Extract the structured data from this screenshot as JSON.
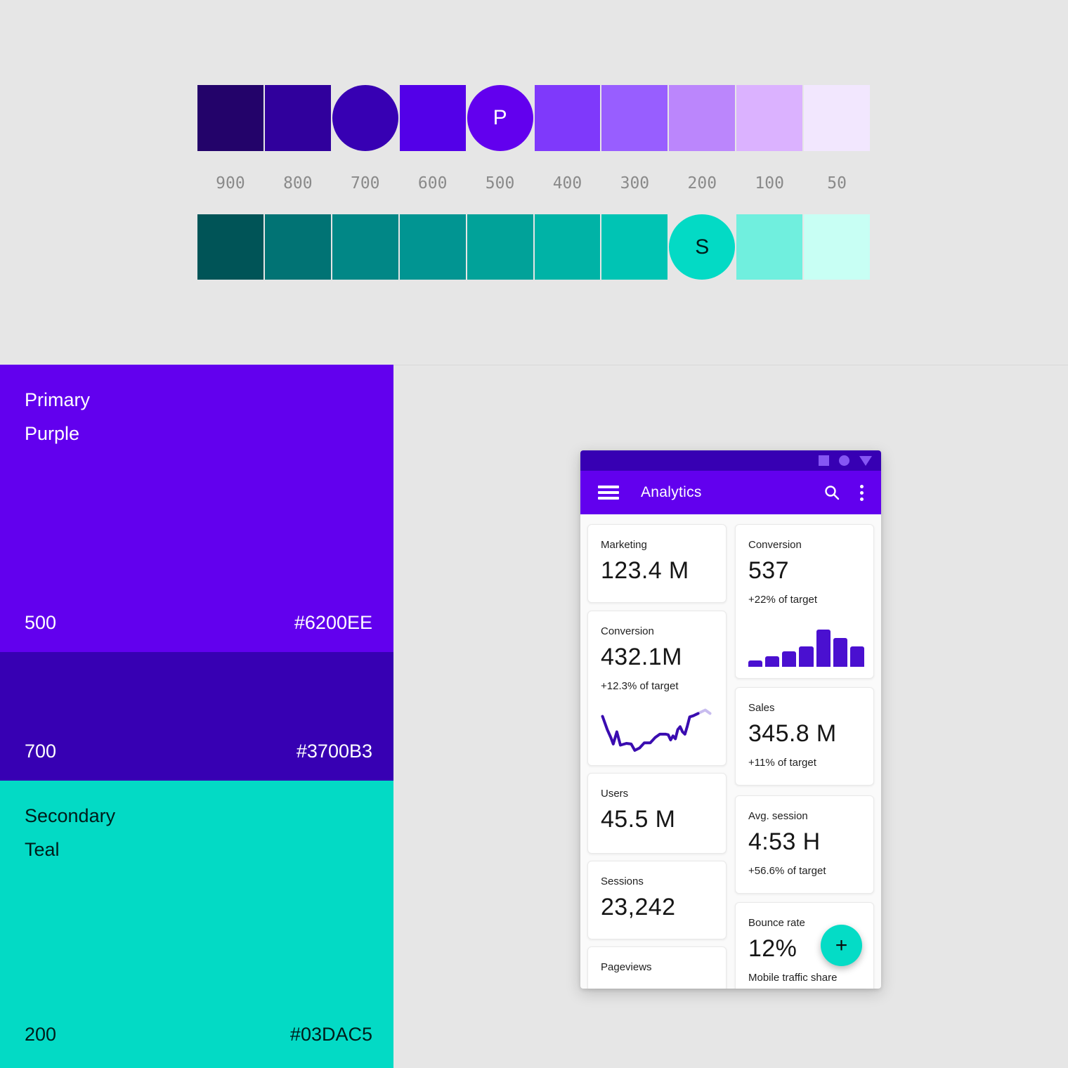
{
  "colors": {
    "page_bg": "#E6E6E6",
    "status_bar": "#3700B3",
    "app_bar": "#6200EE",
    "fab": "#04DCC6",
    "bar_chart": "#4A10D0",
    "line_main": "#3A0CB0",
    "line_tail": "#C8BCEF",
    "tone_label_text": "#8A8A8A"
  },
  "palette": {
    "tone_labels": [
      "900",
      "800",
      "700",
      "600",
      "500",
      "400",
      "300",
      "200",
      "100",
      "50"
    ],
    "primary_row": {
      "name": "purple",
      "colors": [
        "#23036A",
        "#30009C",
        "#3700B3",
        "#5300E8",
        "#6200EE",
        "#7F39FB",
        "#985EFF",
        "#BB86FC",
        "#DBB2FF",
        "#F2E7FE"
      ],
      "circle_indices": [
        2,
        4
      ],
      "marker_index": 4,
      "marker_label": "P"
    },
    "secondary_row": {
      "name": "teal",
      "colors": [
        "#005457",
        "#017374",
        "#018786",
        "#019592",
        "#01A299",
        "#00B3A6",
        "#00C4B4",
        "#03DAC5",
        "#70EFDE",
        "#C8FFF4"
      ],
      "circle_indices": [
        7
      ],
      "marker_index": 7,
      "marker_label": "S"
    }
  },
  "swatch_panels": {
    "primary": {
      "family": "Primary",
      "name": "Purple",
      "blocks": [
        {
          "tone": "500",
          "hex": "#6200EE"
        },
        {
          "tone": "700",
          "hex": "#3700B3"
        }
      ]
    },
    "secondary": {
      "family": "Secondary",
      "name": "Teal",
      "blocks": [
        {
          "tone": "200",
          "hex": "#03DAC5"
        }
      ]
    }
  },
  "phone": {
    "status_bar": {
      "icons": [
        "square",
        "circle",
        "triangle"
      ]
    },
    "app_bar": {
      "title": "Analytics",
      "icons": [
        "menu",
        "search",
        "overflow"
      ]
    },
    "fab_label": "+",
    "cards": {
      "left": [
        {
          "label": "Marketing",
          "value": "123.4 M"
        },
        {
          "label": "Conversion",
          "value": "432.1M",
          "caption": "+12.3% of target",
          "chart": "line"
        },
        {
          "label": "Users",
          "value": "45.5 M"
        },
        {
          "label": "Sessions",
          "value": "23,242"
        },
        {
          "label": "Pageviews"
        }
      ],
      "right": [
        {
          "label": "Conversion",
          "value": "537",
          "caption": "+22% of target",
          "chart": "bar"
        },
        {
          "label": "Sales",
          "value": "345.8 M",
          "caption": "+11% of target"
        },
        {
          "label": "Avg. session",
          "value": "4:53 H",
          "caption": "+56.6% of target"
        },
        {
          "label": "Bounce rate",
          "value": "12%",
          "caption": "Mobile traffic share"
        }
      ]
    }
  },
  "chart_data": [
    {
      "type": "bar",
      "title": "Conversion",
      "value_label": "537",
      "caption": "+22% of target",
      "categories": [
        "1",
        "2",
        "3",
        "4",
        "5",
        "6",
        "7"
      ],
      "values": [
        9,
        15,
        22,
        29,
        53,
        41,
        29
      ],
      "ylim": [
        0,
        53
      ],
      "color": "#4A10D0",
      "grid": false,
      "legend": "none"
    },
    {
      "type": "line",
      "title": "Conversion",
      "value_label": "432.1M",
      "caption": "+12.3% of target",
      "points_pct": [
        [
          5,
          25
        ],
        [
          9,
          48
        ],
        [
          12,
          62
        ],
        [
          14,
          73
        ],
        [
          17,
          52
        ],
        [
          20,
          75
        ],
        [
          25,
          72
        ],
        [
          29,
          73
        ],
        [
          32,
          84
        ],
        [
          36,
          80
        ],
        [
          40,
          71
        ],
        [
          45,
          71
        ],
        [
          49,
          62
        ],
        [
          53,
          56
        ],
        [
          58,
          56
        ],
        [
          60,
          57
        ],
        [
          62,
          66
        ],
        [
          64,
          59
        ],
        [
          66,
          64
        ],
        [
          68,
          48
        ],
        [
          70,
          43
        ],
        [
          72,
          52
        ],
        [
          74,
          56
        ],
        [
          76,
          42
        ],
        [
          78,
          26
        ],
        [
          81,
          24
        ],
        [
          85,
          20
        ]
      ],
      "tail_points_pct": [
        [
          85,
          20
        ],
        [
          91,
          14
        ],
        [
          95,
          20
        ]
      ],
      "color": "#3A0CB0",
      "tail_color": "#C8BCEF",
      "grid": false,
      "legend": "none"
    }
  ]
}
